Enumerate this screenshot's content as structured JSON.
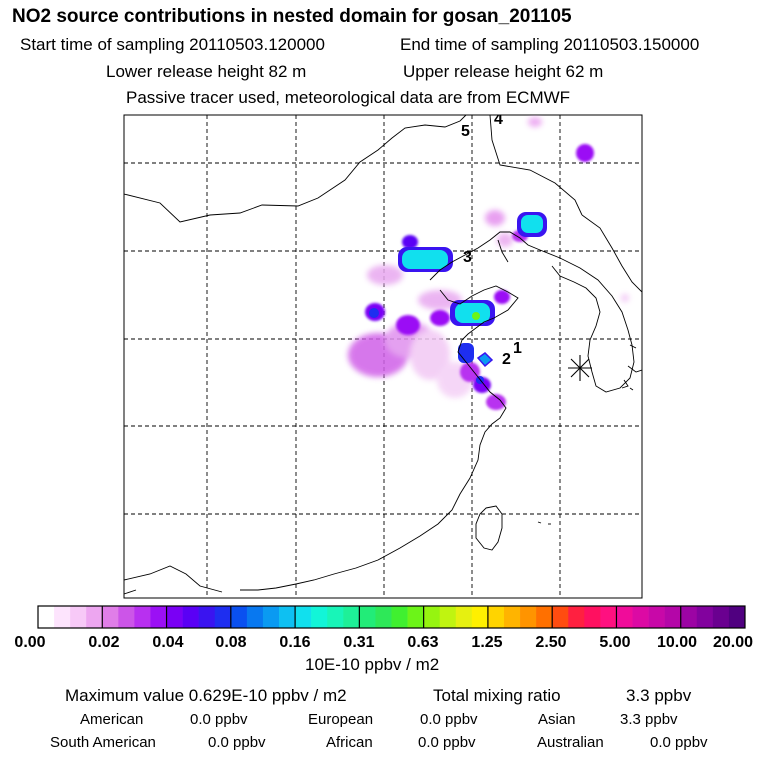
{
  "header": {
    "title": "NO2 source contributions in nested domain for gosan_201105",
    "start_label": "Start time of sampling 20110503.120000",
    "end_label": "End time of sampling 20110503.150000",
    "lower_label": "Lower release height   82 m",
    "upper_label": "Upper release height   62 m",
    "note": "Passive tracer used, meteorological data are from ECMWF"
  },
  "chart_data": {
    "type": "heatmap",
    "title": "NO2 source contributions in nested domain for gosan_201105",
    "colorbar": {
      "ticks": [
        "0.00",
        "0.02",
        "0.04",
        "0.08",
        "0.16",
        "0.31",
        "0.63",
        "1.25",
        "2.50",
        "5.00",
        "10.00",
        "20.00"
      ],
      "unit": "10E-10 ppbv / m2",
      "colors": [
        "#ffffff",
        "#fde4fd",
        "#f7c9f7",
        "#eda6f0",
        "#e07ee8",
        "#cc55e8",
        "#b830f0",
        "#9b10f5",
        "#7a00f5",
        "#5a00f5",
        "#3a14f0",
        "#1e2ef0",
        "#0a50f0",
        "#0878f0",
        "#0a9af2",
        "#0ec0f2",
        "#11e0ee",
        "#12f5d8",
        "#18f5b8",
        "#1ef098",
        "#22ec78",
        "#2ee858",
        "#40f030",
        "#6cf418",
        "#96f410",
        "#c0f410",
        "#e6f010",
        "#fff000",
        "#ffd400",
        "#ffb400",
        "#ff9400",
        "#ff7000",
        "#ff4c10",
        "#ff2040",
        "#ff1060",
        "#ff1080",
        "#f00c9a",
        "#dc0aa4",
        "#c808a8",
        "#b406a8",
        "#9c04a4",
        "#82029e",
        "#6a0090",
        "#500080"
      ]
    },
    "labels": [
      {
        "text": "1",
        "lon": 128.2,
        "lat": 35.3
      },
      {
        "text": "2",
        "lon": 127.8,
        "lat": 34.9
      },
      {
        "text": "3",
        "lon": 124.0,
        "lat": 40.0
      },
      {
        "text": "4",
        "lon": 125.5,
        "lat": 48.0
      },
      {
        "text": "5",
        "lon": 124.0,
        "lat": 47.2
      }
    ],
    "receptor": {
      "name": "gosan",
      "marker": "star"
    }
  },
  "stats": {
    "max_label": "Maximum value  0.629E-10 ppbv / m2",
    "total_label": "Total mixing ratio",
    "total_value": "3.3 ppbv"
  },
  "regions": [
    {
      "name": "American",
      "value": "0.0 ppbv"
    },
    {
      "name": "European",
      "value": "0.0 ppbv"
    },
    {
      "name": "Asian",
      "value": "3.3 ppbv"
    },
    {
      "name": "South American",
      "value": "0.0 ppbv"
    },
    {
      "name": "African",
      "value": "0.0 ppbv"
    },
    {
      "name": "Australian",
      "value": "0.0 ppbv"
    }
  ]
}
